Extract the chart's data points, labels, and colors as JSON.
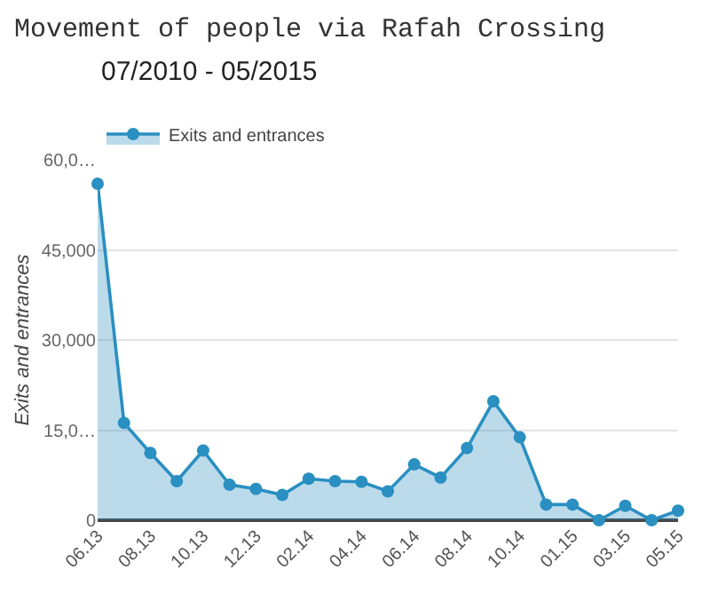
{
  "chart_data": {
    "type": "area",
    "title": "Movement of people via Rafah Crossing",
    "subtitle": "07/2010 - 05/2015",
    "ylabel": "Exits and entrances",
    "categories": [
      "06.13",
      null,
      "08.13",
      null,
      "10.13",
      null,
      "12.13",
      null,
      "02.14",
      null,
      "04.14",
      null,
      "06.14",
      null,
      "08.14",
      null,
      "10.14",
      null,
      "01.15",
      null,
      "03.15",
      null,
      "05.15"
    ],
    "series": [
      {
        "name": "Exits and entrances",
        "color": "#2a8fc1",
        "values": [
          56000,
          16200,
          11200,
          6500,
          11600,
          5900,
          5200,
          4200,
          6900,
          6500,
          6400,
          4800,
          9300,
          7100,
          12000,
          19800,
          13800,
          2600,
          2600,
          0,
          2400,
          0,
          1600
        ]
      }
    ],
    "ylim": [
      0,
      60000
    ],
    "yticks": [
      0,
      {
        "value": 15000,
        "label": "15,0…"
      },
      {
        "value": 30000,
        "label": "30,000"
      },
      {
        "value": 45000,
        "label": "45,000"
      },
      {
        "value": 60000,
        "label": "60,0…"
      }
    ],
    "grid": "y",
    "legend": "top left",
    "marker": "circle",
    "line_style": "solid"
  }
}
